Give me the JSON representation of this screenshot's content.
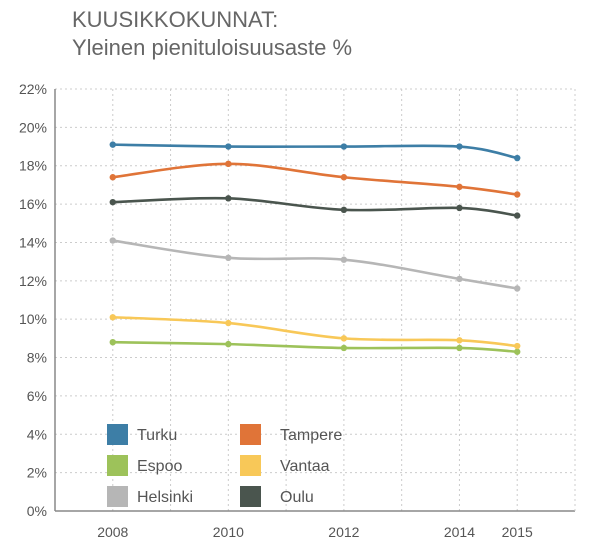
{
  "title": "KUUSIKKOKUNNAT:",
  "subtitle": "Yleinen pienituloisuusaste %",
  "chart_data": {
    "type": "line",
    "title": "KUUSIKKOKUNNAT:",
    "subtitle": "Yleinen pienituloisuusaste %",
    "x": [
      2008,
      2010,
      2012,
      2014,
      2015
    ],
    "xticks": [
      "2008",
      "2010",
      "2012",
      "2014",
      "2015"
    ],
    "xlim": [
      2007,
      2016
    ],
    "ylim": [
      0,
      22
    ],
    "yticks": [
      "0%",
      "2%",
      "4%",
      "6%",
      "8%",
      "10%",
      "12%",
      "14%",
      "16%",
      "18%",
      "20%",
      "22%"
    ],
    "grid": true,
    "legend_position": "bottom-left",
    "series": [
      {
        "name": "Turku",
        "color": "#3d7ea6",
        "values": [
          19.1,
          19.0,
          19.0,
          19.0,
          18.4
        ]
      },
      {
        "name": "Tampere",
        "color": "#e07438",
        "values": [
          17.4,
          18.1,
          17.4,
          16.9,
          16.5
        ]
      },
      {
        "name": "Espoo",
        "color": "#9dc25a",
        "values": [
          8.8,
          8.7,
          8.5,
          8.5,
          8.3
        ]
      },
      {
        "name": "Vantaa",
        "color": "#f8c858",
        "values": [
          10.1,
          9.8,
          9.0,
          8.9,
          8.6
        ]
      },
      {
        "name": "Helsinki",
        "color": "#b6b6b6",
        "values": [
          14.1,
          13.2,
          13.1,
          12.1,
          11.6
        ]
      },
      {
        "name": "Oulu",
        "color": "#4a554e",
        "values": [
          16.1,
          16.3,
          15.7,
          15.8,
          15.4
        ]
      }
    ]
  }
}
